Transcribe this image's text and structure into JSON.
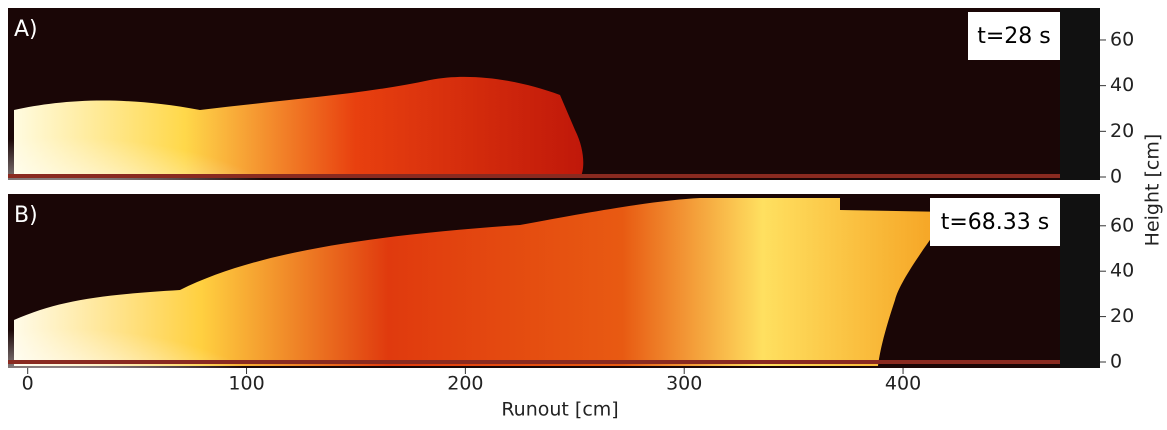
{
  "x_axis": {
    "label": "Runout [cm]",
    "xlim": [
      -9,
      490
    ],
    "ticks": [
      0,
      100,
      200,
      300,
      400
    ]
  },
  "y_axis": {
    "label": "Height [cm]",
    "ylim": [
      0,
      74
    ],
    "ticks": [
      0,
      20,
      40,
      60
    ]
  },
  "panels": [
    {
      "label": "A)",
      "time": "t=28 s"
    },
    {
      "label": "B)",
      "time": "t=68.33 s"
    }
  ]
}
